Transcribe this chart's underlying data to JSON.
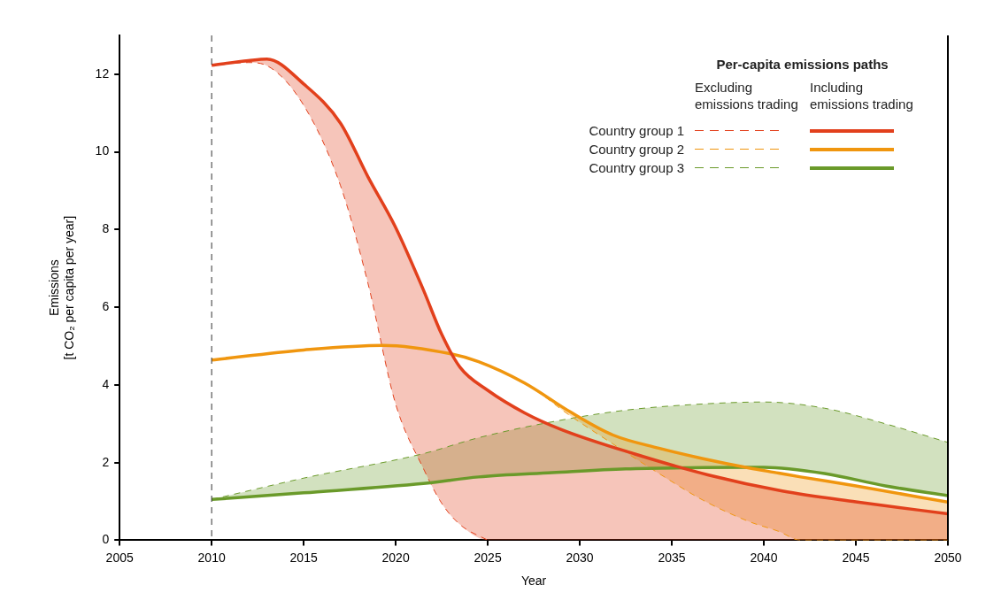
{
  "chart_data": {
    "type": "line",
    "xlabel": "Year",
    "ylabel": "Emissions\n[t CO₂ per capita per year]",
    "legend_title": "Per-capita emissions paths",
    "annotations": [
      "Excluding emissions trading",
      "Including emissions trading"
    ],
    "xlim": [
      2005,
      2050
    ],
    "xticks": [
      2005,
      2010,
      2015,
      2020,
      2025,
      2030,
      2035,
      2040,
      2045,
      2050
    ],
    "ylim": [
      0,
      13
    ],
    "yticks": [
      0,
      2,
      4,
      6,
      8,
      10,
      12
    ],
    "grid": false,
    "legend": "top right",
    "marker": "none",
    "ref_lines": [
      {
        "axis": "x",
        "value": 2010,
        "color": "#333333",
        "line_style": "dashed"
      }
    ],
    "series": [
      {
        "color": "#e2401c",
        "line_style": "dashed",
        "x": [
          2010,
          2012,
          2013,
          2015,
          2017,
          2018.5,
          2020,
          2021.5,
          2022.5,
          2023.5,
          2025
        ],
        "values": [
          12.23,
          12.3,
          12.22,
          11.2,
          9.13,
          6.6,
          3.5,
          1.85,
          0.95,
          0.4,
          0
        ]
      },
      {
        "name": "Country group 1",
        "color": "#e2401c",
        "line_style": "solid",
        "x": [
          2010,
          2012,
          2013,
          2015,
          2017,
          2018.5,
          2020,
          2021.5,
          2022.5,
          2023.5,
          2025,
          2027,
          2029,
          2033,
          2037,
          2041,
          2045,
          2050
        ],
        "values": [
          12.23,
          12.35,
          12.39,
          11.75,
          10.74,
          9.35,
          8.05,
          6.45,
          5.3,
          4.45,
          3.86,
          3.28,
          2.85,
          2.22,
          1.68,
          1.27,
          0.99,
          0.68
        ],
        "lower": [
          12.23,
          12.3,
          12.22,
          11.2,
          9.13,
          6.6,
          3.5,
          1.85,
          0.95,
          0.4,
          0,
          0,
          0,
          0,
          0,
          0,
          0,
          0
        ],
        "upper": [
          12.23,
          12.35,
          12.39,
          11.75,
          10.74,
          9.35,
          8.05,
          6.45,
          5.3,
          4.45,
          3.86,
          3.28,
          2.85,
          2.22,
          1.68,
          1.27,
          0.99,
          0.68
        ]
      },
      {
        "color": "#f0960f",
        "line_style": "dashed",
        "x": [
          2010,
          2015,
          2019.3,
          2023,
          2024.5,
          2027,
          2029.5,
          2031.8,
          2034.3,
          2036.7,
          2039.2,
          2040.8,
          2042,
          2045,
          2050
        ],
        "values": [
          4.64,
          4.9,
          5.02,
          4.8,
          4.6,
          4.05,
          3.2,
          2.48,
          1.72,
          1.03,
          0.48,
          0.23,
          0,
          0,
          0
        ]
      },
      {
        "name": "Country group 2",
        "color": "#f0960f",
        "line_style": "solid",
        "x": [
          2010,
          2015,
          2019.3,
          2023,
          2024.5,
          2027,
          2029.5,
          2031.8,
          2034.3,
          2036.7,
          2039.2,
          2040.8,
          2042,
          2045,
          2050
        ],
        "values": [
          4.64,
          4.9,
          5.02,
          4.8,
          4.6,
          4.05,
          3.3,
          2.71,
          2.37,
          2.1,
          1.86,
          1.73,
          1.63,
          1.4,
          0.98
        ],
        "lower": [
          4.64,
          4.9,
          5.02,
          4.8,
          4.6,
          4.05,
          3.2,
          2.48,
          1.72,
          1.03,
          0.48,
          0.23,
          0,
          0,
          0
        ],
        "upper": [
          4.64,
          4.9,
          5.02,
          4.8,
          4.6,
          4.05,
          3.3,
          2.71,
          2.37,
          2.1,
          1.86,
          1.73,
          1.63,
          1.4,
          0.98
        ]
      },
      {
        "color": "#6a9a2a",
        "line_style": "dashed",
        "x": [
          2010,
          2015,
          2021.5,
          2024.5,
          2028.5,
          2032.5,
          2036.7,
          2040,
          2043.3,
          2046.6,
          2050
        ],
        "values": [
          1.05,
          1.6,
          2.23,
          2.64,
          3.05,
          3.35,
          3.51,
          3.56,
          3.4,
          3.0,
          2.52
        ]
      },
      {
        "name": "Country group 3",
        "color": "#6a9a2a",
        "line_style": "solid",
        "x": [
          2010,
          2015,
          2021.5,
          2024.5,
          2028.5,
          2032.5,
          2036.7,
          2040,
          2043.3,
          2046.6,
          2050
        ],
        "values": [
          1.05,
          1.22,
          1.46,
          1.63,
          1.74,
          1.84,
          1.87,
          1.88,
          1.72,
          1.4,
          1.15
        ],
        "lower": [
          1.05,
          1.22,
          1.46,
          1.63,
          1.74,
          1.84,
          1.87,
          1.88,
          1.72,
          1.4,
          1.15
        ],
        "upper": [
          1.05,
          1.6,
          2.23,
          2.64,
          3.05,
          3.35,
          3.51,
          3.56,
          3.4,
          3.0,
          2.52
        ]
      }
    ]
  }
}
